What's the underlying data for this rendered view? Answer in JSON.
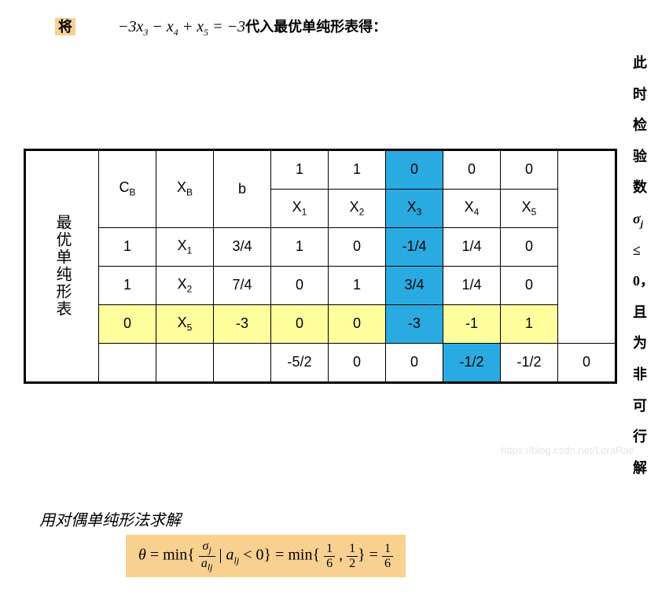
{
  "top": {
    "jiang": "将",
    "equation": "−3x₃ − x₄ + x₅ = −3",
    "after": "代入最优单纯形表得："
  },
  "sideLabel": "最优单纯形表",
  "header": {
    "CB": "C",
    "CBsub": "B",
    "XB": "X",
    "XBsub": "B",
    "b": "b",
    "obj": [
      "1",
      "1",
      "0",
      "0",
      "0"
    ],
    "vars": [
      "X",
      "X",
      "X",
      "X",
      "X"
    ],
    "varsSub": [
      "1",
      "2",
      "3",
      "4",
      "5"
    ]
  },
  "rows": [
    {
      "cb": "1",
      "xb": "X",
      "xbsub": "1",
      "b": "3/4",
      "c": [
        "1",
        "0",
        "-1/4",
        "1/4",
        "0"
      ],
      "yellow": false
    },
    {
      "cb": "1",
      "xb": "X",
      "xbsub": "2",
      "b": "7/4",
      "c": [
        "0",
        "1",
        "3/4",
        "1/4",
        "0"
      ],
      "yellow": false
    },
    {
      "cb": "0",
      "xb": "X",
      "xbsub": "5",
      "b": "-3",
      "c": [
        "0",
        "0",
        "-3",
        "-1",
        "1"
      ],
      "yellow": true
    }
  ],
  "lastRow": {
    "b": "-5/2",
    "c": [
      "0",
      "0",
      "-1/2",
      "-1/2",
      "0"
    ]
  },
  "sideNote": {
    "line1a": "此时检验数",
    "line1b": "σ",
    "line1bsub": "j",
    "line1c": " ≤ 0，",
    "line2": "且为非可行解"
  },
  "note2": "用对偶单纯形法求解",
  "formula": {
    "theta": "θ",
    "eq": " = min{ ",
    "num": "σ",
    "numsub": "j",
    "den": "a",
    "densub": "lj",
    "mid": " | ",
    "a": "a",
    "asub": "lj",
    "lt": " < 0} = min{ ",
    "f1n": "1",
    "f1d": "6",
    "comma": " , ",
    "f2n": "1",
    "f2d": "2",
    "close": "} = ",
    "f3n": "1",
    "f3d": "6"
  },
  "watermark": "https://blog.csdn.net/LoraRae",
  "colors": {
    "yellow": "#ffff9e",
    "blue": "#29abe2",
    "box": "#f8d090"
  }
}
